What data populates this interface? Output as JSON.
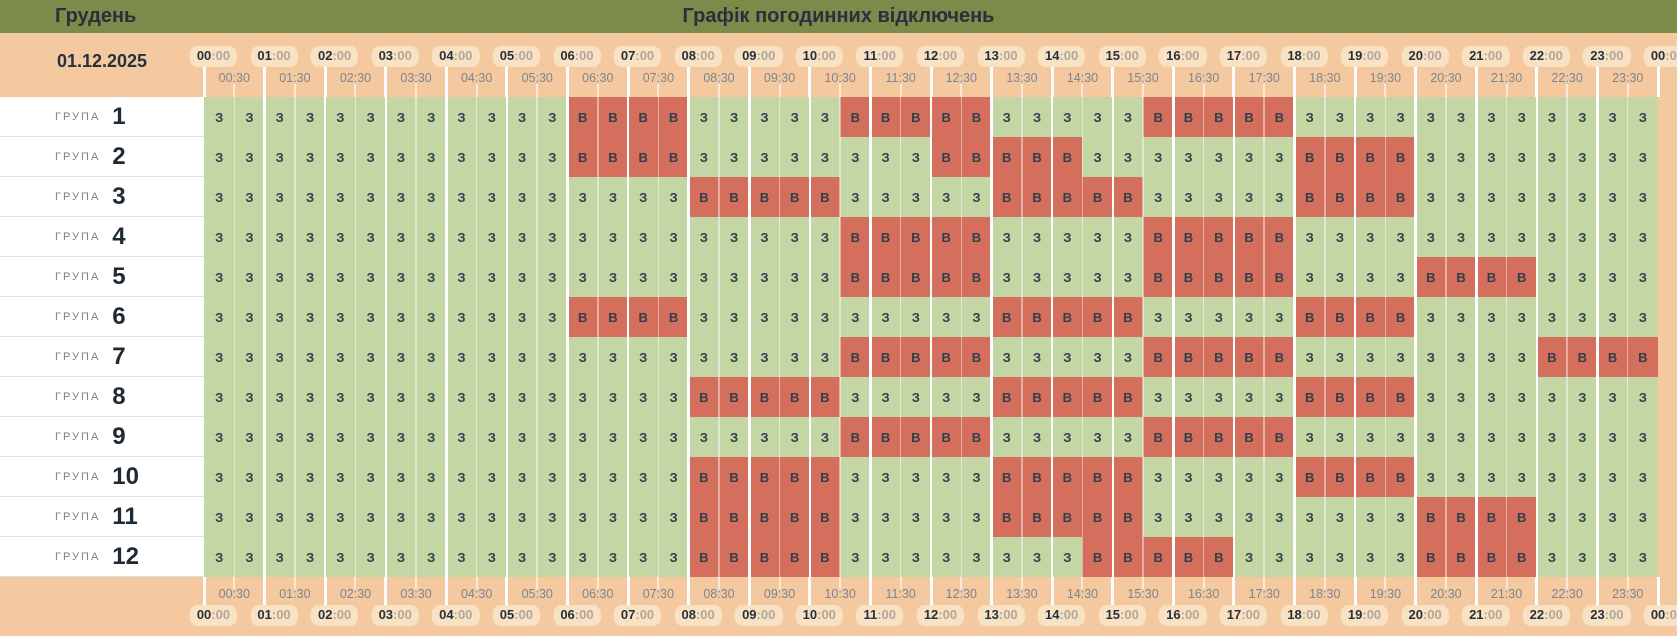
{
  "header": {
    "month": "Грудень",
    "title": "Графік погодинних відключень",
    "date": "01.12.2025"
  },
  "time_axis": {
    "hours": [
      "00:00",
      "01:00",
      "02:00",
      "03:00",
      "04:00",
      "05:00",
      "06:00",
      "07:00",
      "08:00",
      "09:00",
      "10:00",
      "11:00",
      "12:00",
      "13:00",
      "14:00",
      "15:00",
      "16:00",
      "17:00",
      "18:00",
      "19:00",
      "20:00",
      "21:00",
      "22:00",
      "23:00",
      "00:00"
    ],
    "half_hours": [
      "00:30",
      "01:30",
      "02:30",
      "03:30",
      "04:30",
      "05:30",
      "06:30",
      "07:30",
      "08:30",
      "09:30",
      "10:30",
      "11:30",
      "12:30",
      "13:30",
      "14:30",
      "15:30",
      "16:30",
      "17:30",
      "18:30",
      "19:30",
      "20:30",
      "21:30",
      "22:30",
      "23:30"
    ]
  },
  "symbols": {
    "on": "З",
    "off": "В"
  },
  "group_caps": "ГРУПА",
  "groups": [
    {
      "number": "1",
      "schedule": "ЗЗЗЗЗЗЗЗЗЗЗЗВВВВЗЗЗЗЗВВВВВЗЗЗЗЗВВВВВЗЗЗЗЗЗЗЗЗЗЗЗ"
    },
    {
      "number": "2",
      "schedule": "ЗЗЗЗЗЗЗЗЗЗЗЗВВВВЗЗЗЗЗЗЗЗВВВВВЗЗЗЗЗЗЗВВВВЗЗЗЗЗЗЗЗ"
    },
    {
      "number": "3",
      "schedule": "ЗЗЗЗЗЗЗЗЗЗЗЗЗЗЗЗВВВВВЗЗЗЗЗВВВВВЗЗЗЗЗВВВВЗЗЗЗЗЗЗЗ"
    },
    {
      "number": "4",
      "schedule": "ЗЗЗЗЗЗЗЗЗЗЗЗЗЗЗЗЗЗЗЗЗВВВВВЗЗЗЗЗВВВВВЗЗЗЗЗЗЗЗЗЗЗЗ"
    },
    {
      "number": "5",
      "schedule": "ЗЗЗЗЗЗЗЗЗЗЗЗЗЗЗЗЗЗЗЗЗВВВВВЗЗЗЗЗВВВВВЗЗЗЗВВВВЗЗЗЗ"
    },
    {
      "number": "6",
      "schedule": "ЗЗЗЗЗЗЗЗЗЗЗЗВВВВЗЗЗЗЗЗЗЗЗЗВВВВВЗЗЗЗЗВВВВЗЗЗЗЗЗЗЗ"
    },
    {
      "number": "7",
      "schedule": "ЗЗЗЗЗЗЗЗЗЗЗЗЗЗЗЗЗЗЗЗЗВВВВВЗЗЗЗЗВВВВВЗЗЗЗЗЗЗЗВВВВ"
    },
    {
      "number": "8",
      "schedule": "ЗЗЗЗЗЗЗЗЗЗЗЗЗЗЗЗВВВВВЗЗЗЗЗВВВВВЗЗЗЗЗВВВВЗЗЗЗЗЗЗЗ"
    },
    {
      "number": "9",
      "schedule": "ЗЗЗЗЗЗЗЗЗЗЗЗЗЗЗЗЗЗЗЗЗВВВВВЗЗЗЗЗВВВВВЗЗЗЗЗЗЗЗЗЗЗЗ"
    },
    {
      "number": "10",
      "schedule": "ЗЗЗЗЗЗЗЗЗЗЗЗЗЗЗЗВВВВВЗЗЗЗЗВВВВВЗЗЗЗЗВВВВЗЗЗЗЗЗЗЗ"
    },
    {
      "number": "11",
      "schedule": "ЗЗЗЗЗЗЗЗЗЗЗЗЗЗЗЗВВВВВЗЗЗЗЗВВВВВЗЗЗЗЗЗЗЗЗВВВВЗЗЗЗ"
    },
    {
      "number": "12",
      "schedule": "ЗЗЗЗЗЗЗЗЗЗЗЗЗЗЗЗВВВВВЗЗЗЗЗЗЗЗВВВВВЗЗЗЗЗЗВВВВЗЗЗЗ"
    }
  ],
  "colors": {
    "top_bar": "#7c8a4a",
    "header_bg": "#f4c9a0",
    "pill_bg": "#f9e2c4",
    "cell_on": "#c4d6a4",
    "cell_off": "#d46f5d",
    "text_dark": "#25313c",
    "text_gray": "#7b8591",
    "suffix_gray": "#b0a79a",
    "letter": "#2f3f4b",
    "group_gray": "#78828c",
    "row_divider": "#dcdfe3",
    "group_num": "#1e2a34"
  }
}
